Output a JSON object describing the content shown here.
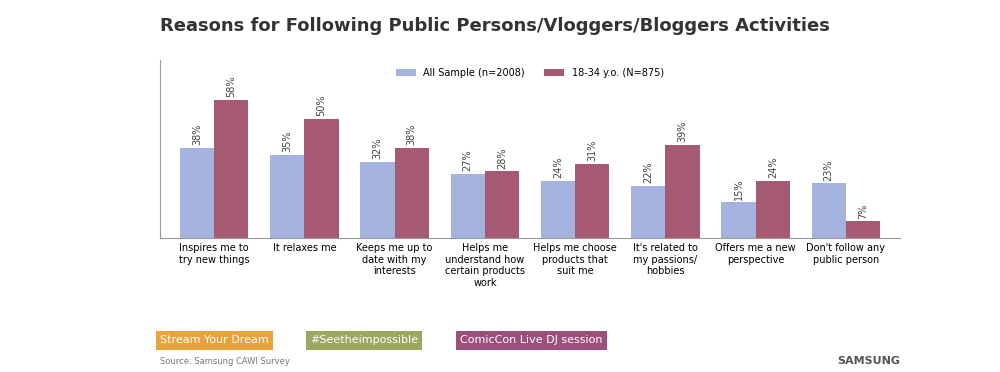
{
  "chart_data": {
    "type": "bar",
    "title": "Reasons for Following Public Persons/Vloggers/Bloggers Activities",
    "categories": [
      "Inspires me to try new things",
      "It relaxes me",
      "Keeps me up to date with my interests",
      "Helps me understand how certain products work",
      "Helps me choose products that suit me",
      "It's related to my passions/ hobbies",
      "Offers me a new perspective",
      "Don't follow any public person"
    ],
    "series": [
      {
        "name": "All Sample (n=2008)",
        "color": "#a4b3de",
        "values": [
          38,
          35,
          32,
          27,
          24,
          22,
          15,
          23
        ],
        "value_labels": [
          "38%",
          "35%",
          "32%",
          "27%",
          "24%",
          "22%",
          "15%",
          "23%"
        ]
      },
      {
        "name": "18-34 y.o. (N=875)",
        "color": "#a65a72",
        "values": [
          58,
          50,
          38,
          28,
          31,
          39,
          24,
          7
        ],
        "value_labels": [
          "58%",
          "50%",
          "38%",
          "28%",
          "31%",
          "39%",
          "24%",
          "7%"
        ]
      }
    ],
    "ylim": [
      0,
      75
    ],
    "yticks": [],
    "tick_labels": "x",
    "grid": false,
    "legend": "upper center",
    "data_labels": true,
    "campaigns": [
      {
        "label": "Stream Your Dream",
        "color": "#e8a33d"
      },
      {
        "label": "#Seetheimpossible",
        "color": "#9aa860"
      },
      {
        "label": "ComicCon Live DJ session",
        "color": "#9b4f7a"
      }
    ],
    "source": "Source: Samsung CAWI Survey",
    "brand": "SAMSUNG"
  }
}
